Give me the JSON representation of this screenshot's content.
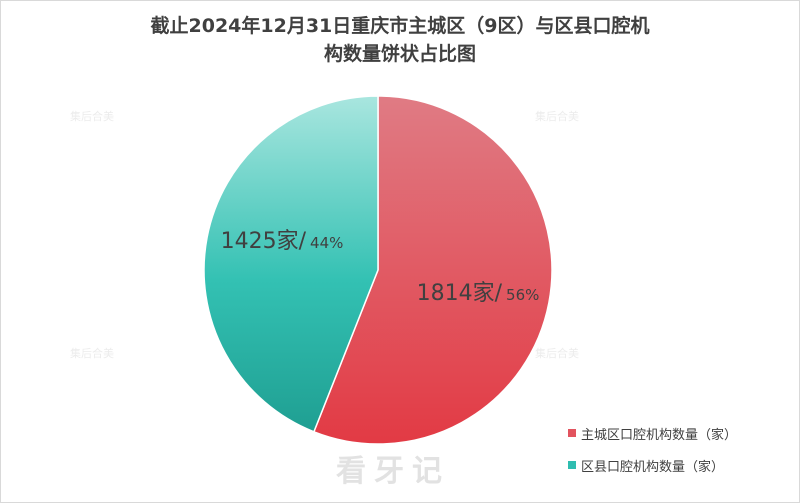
{
  "chart_data": {
    "type": "pie",
    "title_line1": "截止2024年12月31日重庆市主城区（9区）与区县口腔机",
    "title_line2": "构数量饼状占比图",
    "slices": [
      {
        "name": "主城区口腔机构数量（家）",
        "value": 1814,
        "label": "1814家/",
        "percent_label": "56%",
        "color": "#e2535e"
      },
      {
        "name": "区县口腔机构数量（家）",
        "value": 1425,
        "label": "1425家/",
        "percent_label": "44%",
        "color": "#2fbdb0"
      }
    ],
    "legend_position": "bottom-right"
  },
  "watermark": {
    "brand": "看牙记",
    "tile_text": "集后合美"
  }
}
